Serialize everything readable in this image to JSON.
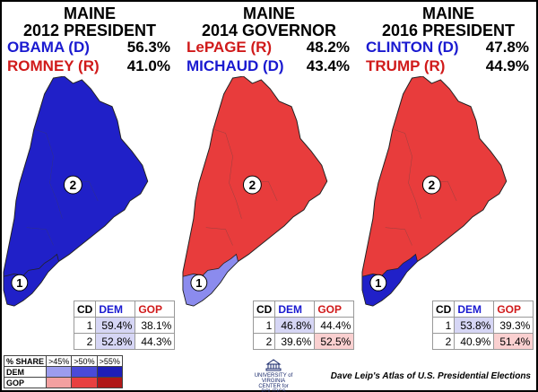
{
  "colors": {
    "dem_strong": "#2020c8",
    "dem_mid": "#3a3ad6",
    "dem_light": "#8b8bee",
    "dem_cell": "#d6d6f5",
    "gop_strong": "#e83c3c",
    "gop_mid": "#ef6a6a",
    "gop_light": "#f6b0b0",
    "gop_cell": "#fad0d0",
    "dem_text": "#1a1ad0",
    "gop_text": "#d01a1a"
  },
  "panels": [
    {
      "title_line1": "MAINE",
      "title_line2": "2012 PRESIDENT",
      "candidates": [
        {
          "name": "OBAMA (D)",
          "pct": "56.3%",
          "party": "dem"
        },
        {
          "name": "ROMNEY (R)",
          "pct": "41.0%",
          "party": "gop"
        }
      ],
      "cd1_fill": "dem",
      "cd2_fill": "dem",
      "table": {
        "header": [
          "CD",
          "DEM",
          "GOP"
        ],
        "rows": [
          {
            "cd": "1",
            "dem": "59.4%",
            "gop": "38.1%",
            "winner": "dem"
          },
          {
            "cd": "2",
            "dem": "52.8%",
            "gop": "44.3%",
            "winner": "dem"
          }
        ]
      }
    },
    {
      "title_line1": "MAINE",
      "title_line2": "2014 GOVERNOR",
      "candidates": [
        {
          "name": "LePAGE (R)",
          "pct": "48.2%",
          "party": "gop"
        },
        {
          "name": "MICHAUD (D)",
          "pct": "43.4%",
          "party": "dem"
        }
      ],
      "cd1_fill": "dem_light",
      "cd2_fill": "gop",
      "table": {
        "header": [
          "CD",
          "DEM",
          "GOP"
        ],
        "rows": [
          {
            "cd": "1",
            "dem": "46.8%",
            "gop": "44.4%",
            "winner": "dem"
          },
          {
            "cd": "2",
            "dem": "39.6%",
            "gop": "52.5%",
            "winner": "gop"
          }
        ]
      }
    },
    {
      "title_line1": "MAINE",
      "title_line2": "2016 PRESIDENT",
      "candidates": [
        {
          "name": "CLINTON (D)",
          "pct": "47.8%",
          "party": "dem"
        },
        {
          "name": "TRUMP (R)",
          "pct": "44.9%",
          "party": "gop"
        }
      ],
      "cd1_fill": "dem",
      "cd2_fill": "gop",
      "table": {
        "header": [
          "CD",
          "DEM",
          "GOP"
        ],
        "rows": [
          {
            "cd": "1",
            "dem": "53.8%",
            "gop": "39.3%",
            "winner": "dem"
          },
          {
            "cd": "2",
            "dem": "40.9%",
            "gop": "51.4%",
            "winner": "gop"
          }
        ]
      }
    }
  ],
  "district_labels": [
    "1",
    "2"
  ],
  "legend": {
    "header": "% SHARE",
    "levels": [
      ">45%",
      ">50%",
      ">55%"
    ],
    "rows": [
      "DEM",
      "GOP"
    ]
  },
  "logo_text": "UNIVERSITY of VIRGINIA CENTER for POLITICS",
  "credit": "Dave Leip's Atlas of U.S. Presidential Elections"
}
